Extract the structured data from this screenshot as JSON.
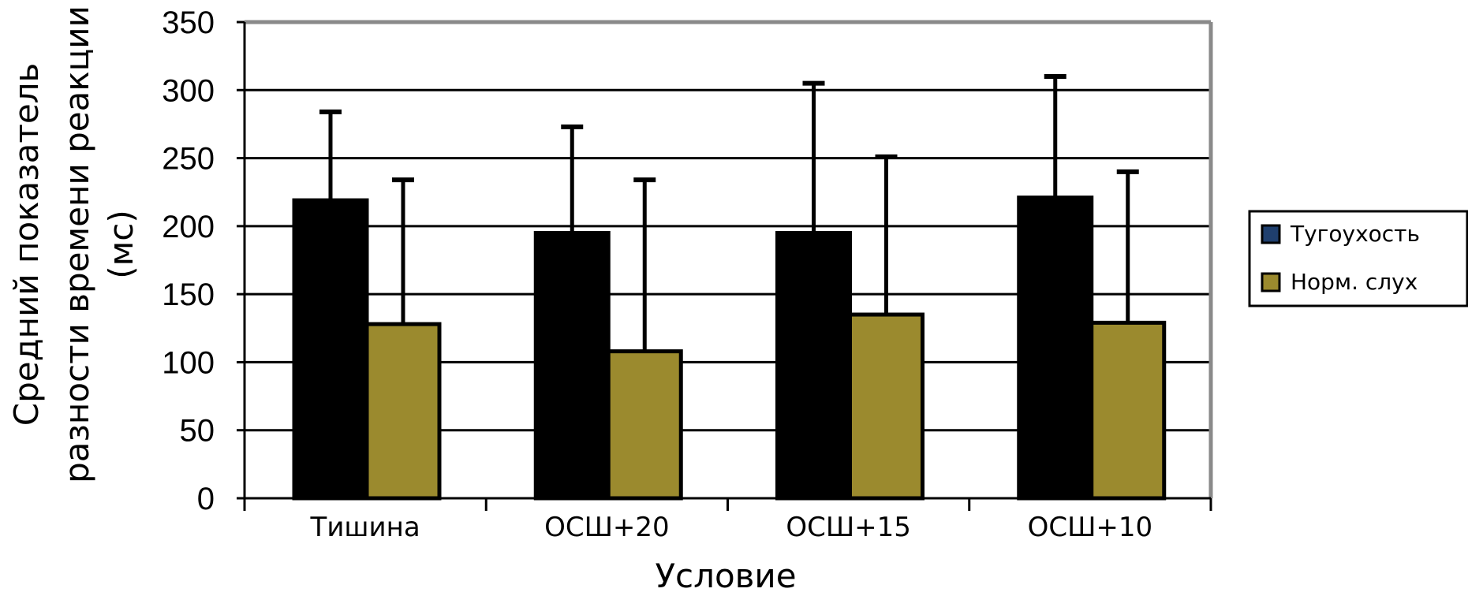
{
  "chart_data": {
    "type": "bar",
    "title": "",
    "xlabel": "Условие",
    "ylabel_lines": [
      "Средний показатель",
      "разности времени реакции",
      "(мс)"
    ],
    "categories": [
      "Тишина",
      "ОСШ+20",
      "ОСШ+15",
      "ОСШ+10"
    ],
    "ylim": [
      0,
      350
    ],
    "yticks": [
      0,
      50,
      100,
      150,
      200,
      250,
      300,
      350
    ],
    "grid": true,
    "legend_position": "right",
    "series": [
      {
        "name": "Тугоухость",
        "values": [
          219,
          195,
          195,
          221
        ],
        "error_upper": [
          284,
          273,
          305,
          310
        ],
        "color": "#000000",
        "legend_color": "#1f3f6e"
      },
      {
        "name": "Норм. слух",
        "values": [
          128,
          108,
          135,
          129
        ],
        "error_upper": [
          234,
          234,
          251,
          240
        ],
        "color": "#9b8a2e",
        "legend_color": "#9b8a2e"
      }
    ]
  }
}
